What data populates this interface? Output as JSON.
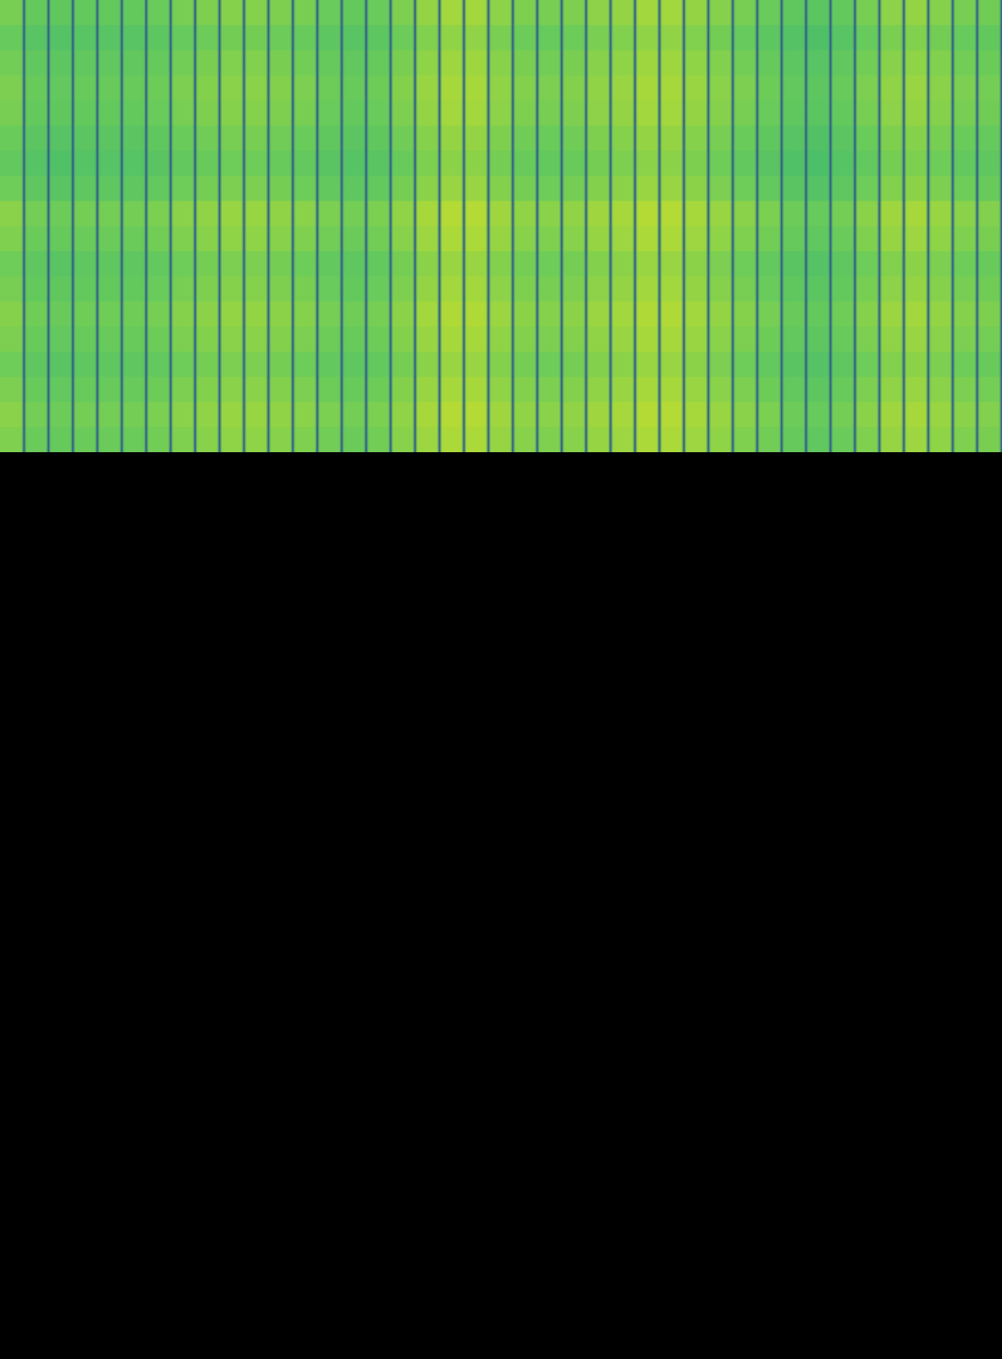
{
  "image": {
    "kind": "spectrogram-like striped heatmap",
    "colormap": "viridis",
    "colors": {
      "stripe": "#2f4f8c",
      "teal": "#3cb872",
      "green": "#6acb5a",
      "lime": "#a8d83a",
      "yellow": "#e8e21e",
      "background": "#000000"
    },
    "stripe_count": 41,
    "column_levels": [
      0.45,
      0.3,
      0.25,
      0.3,
      0.3,
      0.3,
      0.35,
      0.45,
      0.5,
      0.55,
      0.55,
      0.5,
      0.45,
      0.35,
      0.3,
      0.35,
      0.5,
      0.65,
      0.75,
      0.75,
      0.6,
      0.5,
      0.45,
      0.5,
      0.6,
      0.65,
      0.75,
      0.75,
      0.65,
      0.55,
      0.45,
      0.35,
      0.25,
      0.2,
      0.3,
      0.45,
      0.6,
      0.65,
      0.55,
      0.45,
      0.4
    ],
    "band_levels": [
      0.55,
      0.35,
      0.5,
      0.6,
      0.55,
      0.4,
      0.3,
      0.45,
      0.75,
      0.65,
      0.45,
      0.55,
      0.7,
      0.6,
      0.45,
      0.6,
      0.75,
      0.65
    ]
  }
}
